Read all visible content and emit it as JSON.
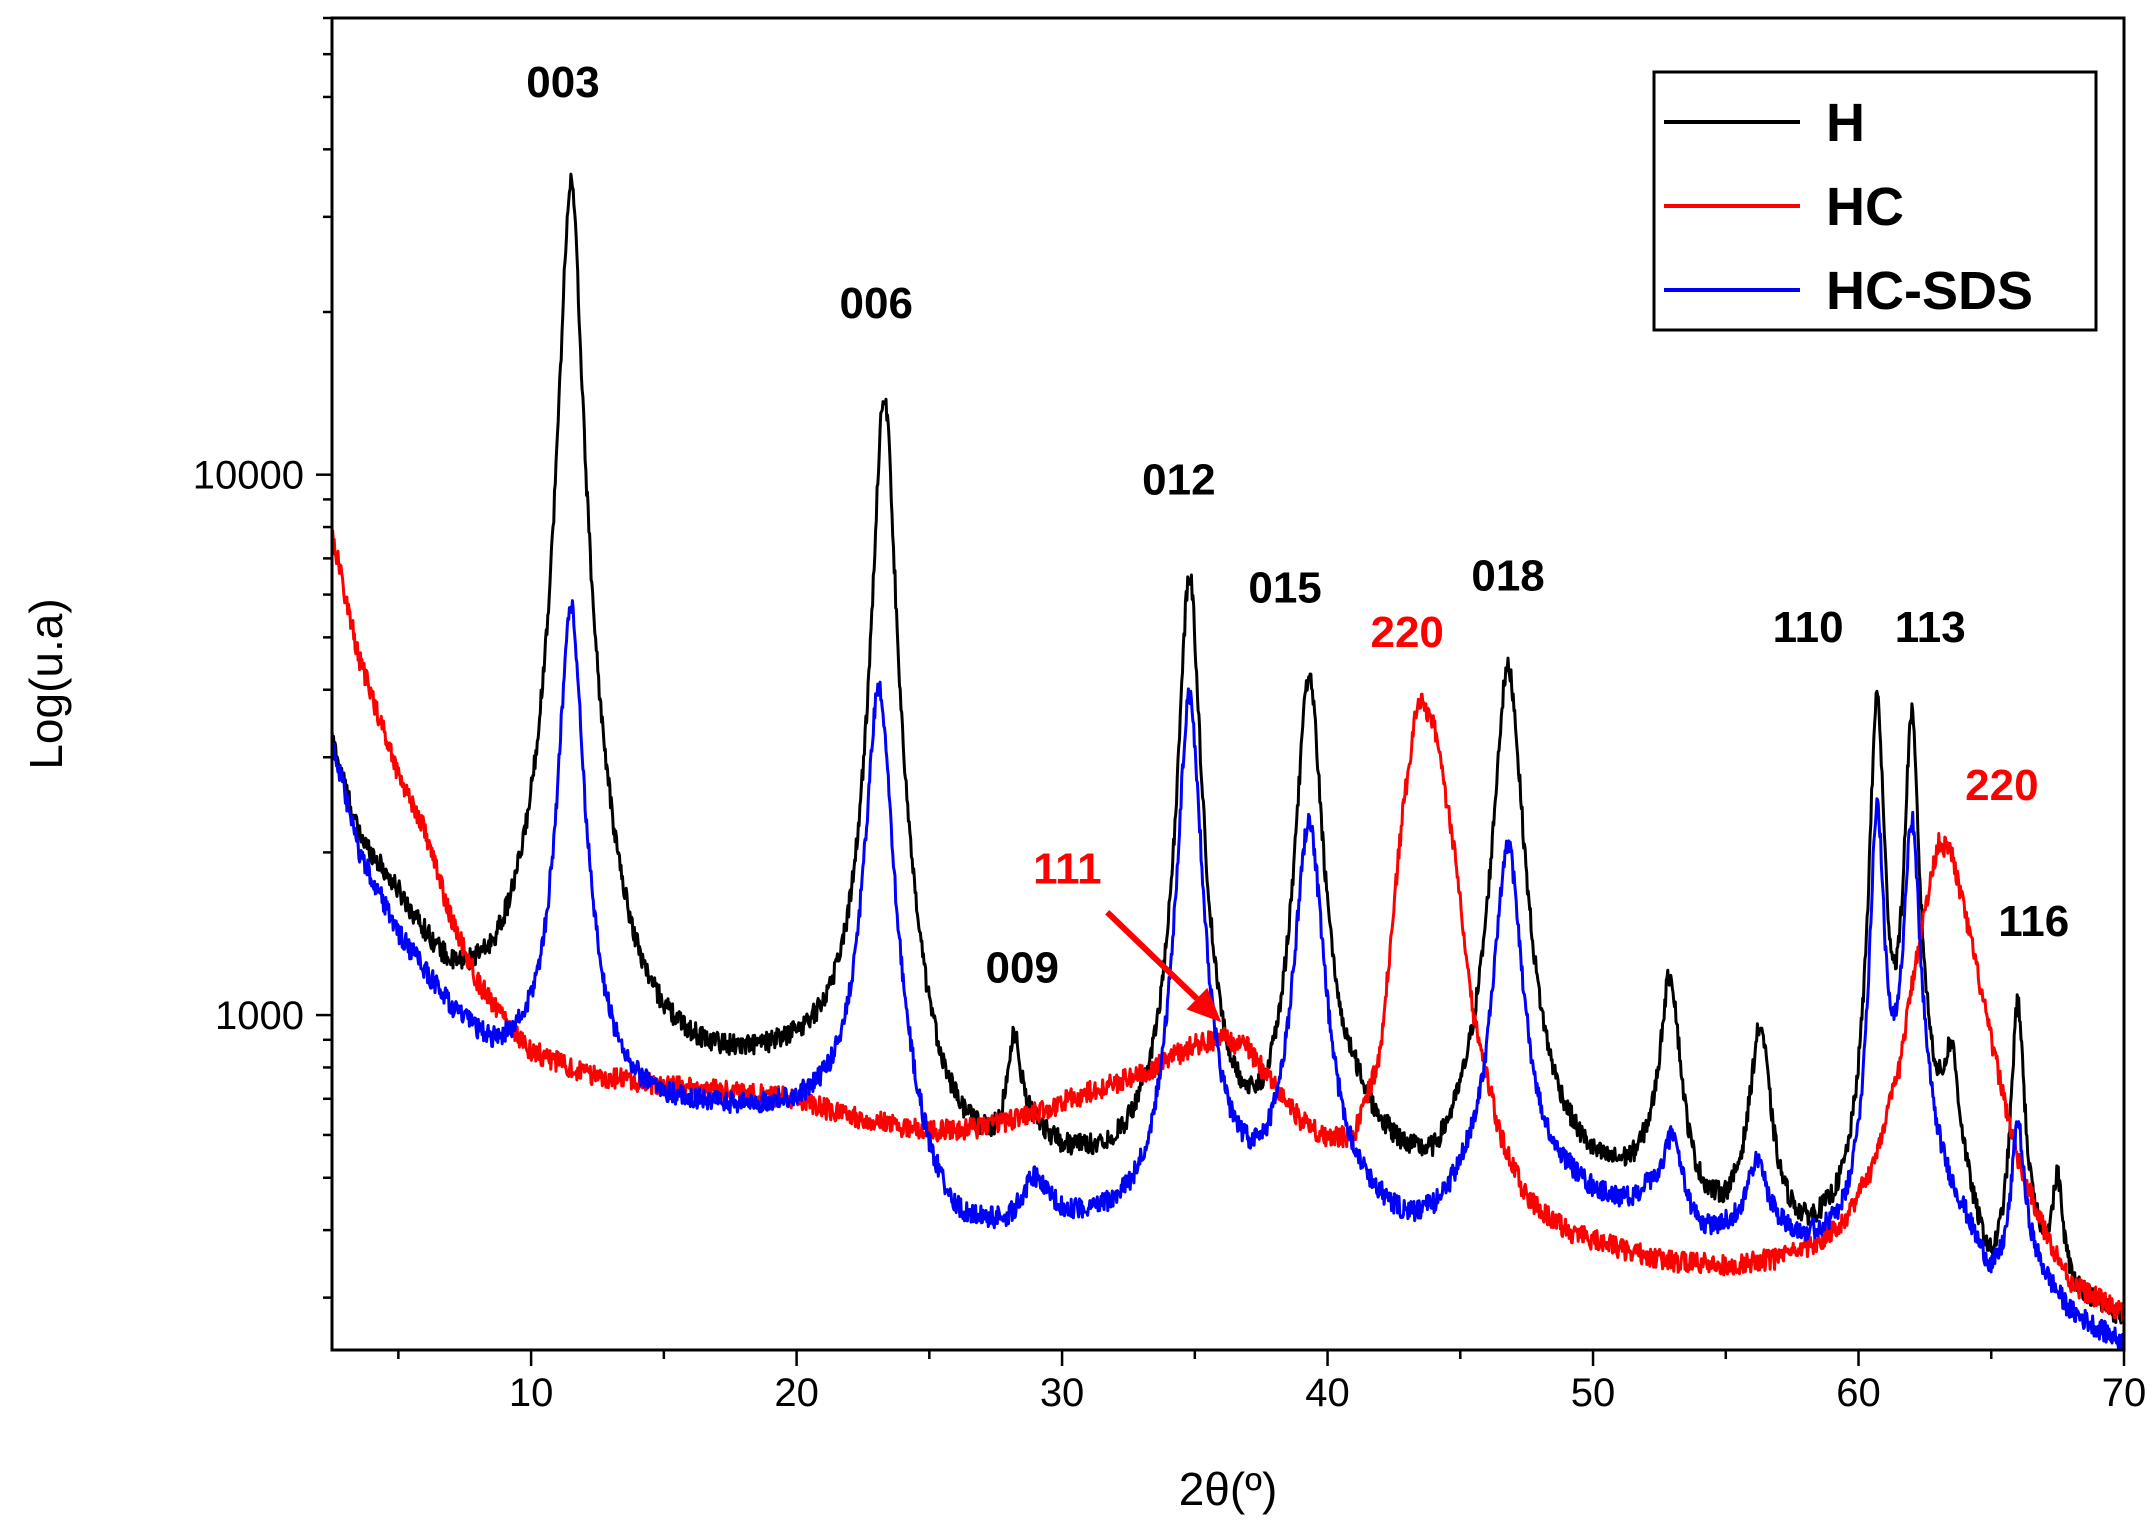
{
  "chart_data": {
    "type": "line",
    "title": "",
    "xlabel": "2θ(º)",
    "ylabel": "Log(u.a)",
    "xlim": [
      2.5,
      70
    ],
    "ylim": [
      240,
      70000
    ],
    "yscale": "log",
    "x_ticks": [
      10,
      20,
      30,
      40,
      50,
      60,
      70
    ],
    "x_tick_labels": [
      "10",
      "20",
      "30",
      "40",
      "50",
      "60",
      "70"
    ],
    "y_ticks": [
      1000,
      10000
    ],
    "y_tick_labels": [
      "1000",
      "10000"
    ],
    "legend_position": "top-right",
    "series": [
      {
        "name": "H",
        "color": "#000000",
        "baseline": [
          [
            2.5,
            3200
          ],
          [
            3.5,
            2100
          ],
          [
            5,
            1600
          ],
          [
            7,
            1050
          ],
          [
            8.5,
            900
          ],
          [
            10,
            850
          ],
          [
            12,
            720
          ],
          [
            14,
            680
          ],
          [
            16,
            700
          ],
          [
            18,
            720
          ],
          [
            20,
            730
          ],
          [
            21.5,
            700
          ],
          [
            24,
            560
          ],
          [
            25,
            480
          ],
          [
            26,
            450
          ],
          [
            27.5,
            450
          ],
          [
            29,
            520
          ],
          [
            30,
            480
          ],
          [
            32,
            460
          ],
          [
            33.5,
            470
          ],
          [
            35,
            470
          ],
          [
            36.5,
            450
          ],
          [
            37.5,
            410
          ],
          [
            39,
            420
          ],
          [
            41,
            540
          ],
          [
            42,
            480
          ],
          [
            43,
            440
          ],
          [
            44,
            400
          ],
          [
            45.5,
            450
          ],
          [
            48,
            470
          ],
          [
            49,
            460
          ],
          [
            50,
            440
          ],
          [
            51.5,
            440
          ],
          [
            52,
            450
          ],
          [
            54,
            380
          ],
          [
            55,
            370
          ],
          [
            56,
            400
          ],
          [
            57,
            360
          ],
          [
            58,
            340
          ],
          [
            59.5,
            350
          ],
          [
            61.5,
            420
          ],
          [
            62.5,
            520
          ],
          [
            64,
            400
          ],
          [
            65,
            270
          ],
          [
            66.5,
            320
          ],
          [
            67.5,
            320
          ],
          [
            68,
            290
          ],
          [
            70,
            260
          ]
        ],
        "peaks": [
          [
            11.5,
            34000,
            0.35
          ],
          [
            23.3,
            13500,
            0.35
          ],
          [
            28.2,
            330,
            0.3
          ],
          [
            34.8,
            6000,
            0.35
          ],
          [
            39.3,
            3700,
            0.45
          ],
          [
            46.8,
            3900,
            0.5
          ],
          [
            52.9,
            720,
            0.4
          ],
          [
            56.3,
            520,
            0.4
          ],
          [
            60.7,
            3400,
            0.25
          ],
          [
            62.0,
            3000,
            0.25
          ],
          [
            63.5,
            330,
            0.3
          ],
          [
            66.0,
            720,
            0.25
          ],
          [
            67.5,
            150,
            0.2
          ]
        ]
      },
      {
        "name": "HC",
        "color": "#ff0000",
        "baseline": [
          [
            2.5,
            7800
          ],
          [
            3.5,
            4600
          ],
          [
            5,
            2800
          ],
          [
            6,
            2200
          ],
          [
            7,
            1500
          ],
          [
            8,
            1150
          ],
          [
            9,
            980
          ],
          [
            10,
            860
          ],
          [
            12,
            780
          ],
          [
            15,
            740
          ],
          [
            18,
            720
          ],
          [
            20,
            700
          ],
          [
            22,
            650
          ],
          [
            25,
            610
          ],
          [
            27,
            620
          ],
          [
            29,
            660
          ],
          [
            31,
            720
          ],
          [
            33,
            780
          ],
          [
            35,
            880
          ],
          [
            36,
            910
          ],
          [
            37,
            870
          ],
          [
            38,
            740
          ],
          [
            39,
            640
          ],
          [
            40,
            590
          ],
          [
            41,
            600
          ],
          [
            42,
            850
          ],
          [
            42.8,
            2300
          ],
          [
            43.4,
            3900
          ],
          [
            44,
            3500
          ],
          [
            44.8,
            2000
          ],
          [
            45.5,
            1000
          ],
          [
            46.5,
            600
          ],
          [
            47.5,
            460
          ],
          [
            49,
            400
          ],
          [
            51,
            370
          ],
          [
            53,
            350
          ],
          [
            55,
            345
          ],
          [
            57,
            355
          ],
          [
            58.5,
            380
          ],
          [
            59.5,
            420
          ],
          [
            60.5,
            520
          ],
          [
            61.5,
            780
          ],
          [
            62.2,
            1300
          ],
          [
            63,
            2100
          ],
          [
            63.5,
            2000
          ],
          [
            64.2,
            1400
          ],
          [
            65,
            900
          ],
          [
            66,
            540
          ],
          [
            67,
            400
          ],
          [
            68,
            320
          ],
          [
            70,
            280
          ]
        ],
        "peaks": []
      },
      {
        "name": "HC-SDS",
        "color": "#0000ff",
        "baseline": [
          [
            2.5,
            3200
          ],
          [
            3.5,
            2000
          ],
          [
            5,
            1400
          ],
          [
            7,
            1000
          ],
          [
            8.5,
            820
          ],
          [
            10,
            760
          ],
          [
            12,
            690
          ],
          [
            14,
            650
          ],
          [
            16,
            650
          ],
          [
            18,
            640
          ],
          [
            20,
            630
          ],
          [
            21.5,
            620
          ],
          [
            23,
            600
          ],
          [
            24,
            490
          ],
          [
            25,
            390
          ],
          [
            26,
            350
          ],
          [
            28,
            370
          ],
          [
            29,
            420
          ],
          [
            30,
            390
          ],
          [
            32,
            370
          ],
          [
            33.5,
            360
          ],
          [
            35,
            360
          ],
          [
            36.5,
            400
          ],
          [
            37.5,
            380
          ],
          [
            39,
            400
          ],
          [
            41,
            400
          ],
          [
            42,
            380
          ],
          [
            43,
            360
          ],
          [
            44,
            370
          ],
          [
            45.5,
            420
          ],
          [
            48,
            440
          ],
          [
            49,
            450
          ],
          [
            50,
            430
          ],
          [
            51.5,
            420
          ],
          [
            52,
            440
          ],
          [
            54,
            370
          ],
          [
            55,
            380
          ],
          [
            56,
            400
          ],
          [
            57,
            380
          ],
          [
            58,
            360
          ],
          [
            59.5,
            350
          ],
          [
            61.5,
            420
          ],
          [
            62.5,
            470
          ],
          [
            64,
            380
          ],
          [
            65,
            300
          ],
          [
            66.5,
            330
          ],
          [
            68,
            270
          ],
          [
            70,
            240
          ]
        ],
        "peaks": [
          [
            11.5,
            5000,
            0.4
          ],
          [
            23.1,
            3400,
            0.45
          ],
          [
            28.9,
            40,
            0.5
          ],
          [
            34.8,
            3500,
            0.4
          ],
          [
            39.3,
            1850,
            0.5
          ],
          [
            46.8,
            1600,
            0.5
          ],
          [
            53.0,
            180,
            0.4
          ],
          [
            56.2,
            120,
            0.4
          ],
          [
            60.7,
            2000,
            0.25
          ],
          [
            62.0,
            1800,
            0.3
          ],
          [
            66.0,
            300,
            0.25
          ]
        ]
      }
    ],
    "annotations": [
      {
        "text": "003",
        "x": 11.2,
        "y": 50000,
        "color": "#000000"
      },
      {
        "text": "006",
        "x": 23.0,
        "y": 19500,
        "color": "#000000"
      },
      {
        "text": "009",
        "x": 28.5,
        "y": 1150,
        "color": "#000000"
      },
      {
        "text": "012",
        "x": 34.4,
        "y": 9200,
        "color": "#000000"
      },
      {
        "text": "015",
        "x": 38.4,
        "y": 5800,
        "color": "#000000"
      },
      {
        "text": "220",
        "x": 43.0,
        "y": 4800,
        "color": "#ff0000"
      },
      {
        "text": "018",
        "x": 46.8,
        "y": 6100,
        "color": "#000000"
      },
      {
        "text": "110",
        "x": 58.1,
        "y": 4900,
        "color": "#000000"
      },
      {
        "text": "113",
        "x": 62.7,
        "y": 4900,
        "color": "#000000"
      },
      {
        "text": "220",
        "x": 65.4,
        "y": 2500,
        "color": "#ff0000"
      },
      {
        "text": "116",
        "x": 66.6,
        "y": 1400,
        "color": "#000000"
      },
      {
        "text": "111",
        "x": 30.2,
        "y": 1750,
        "color": "#ff0000"
      }
    ],
    "arrow": {
      "from_x": 31.7,
      "from_y": 1550,
      "to_x": 36.0,
      "to_y": 970,
      "color": "#ff0000"
    }
  }
}
